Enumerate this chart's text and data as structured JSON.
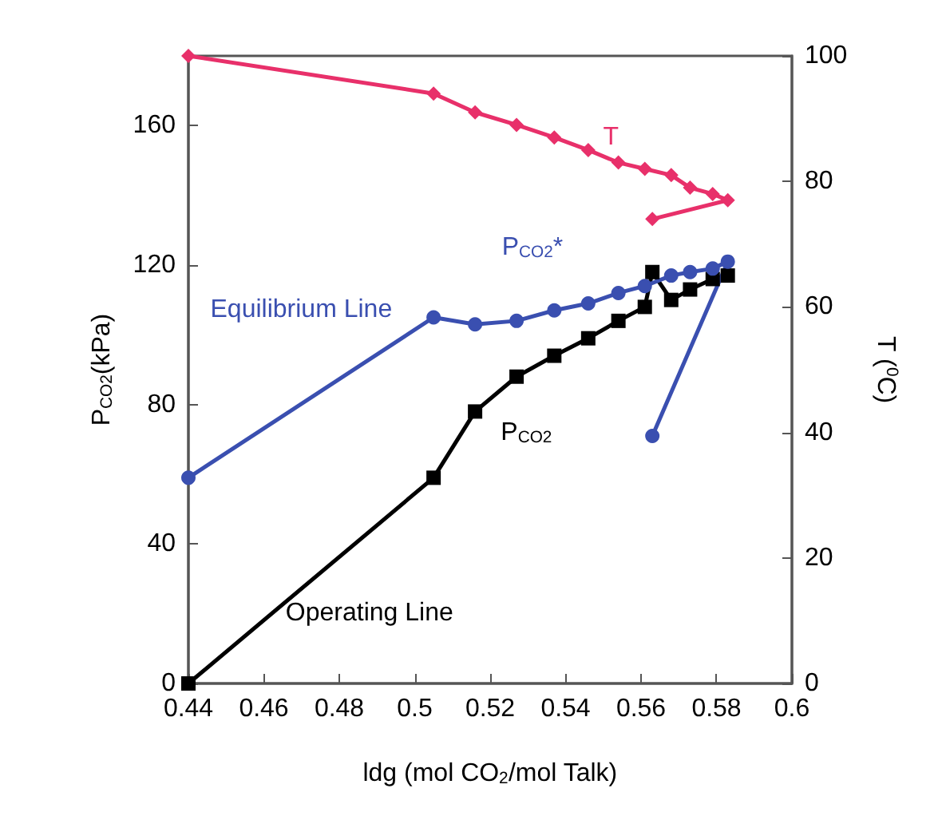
{
  "chart_data": {
    "type": "line",
    "xlabel": "ldg (mol CO$_{2}$/mol Talk)",
    "ylabel": "P$_{CO2}$(kPa)",
    "y2label": "T ($^{0}$C)",
    "xlim": [
      0.44,
      0.6
    ],
    "xticks": [
      0.44,
      0.46,
      0.48,
      0.5,
      0.52,
      0.54,
      0.56,
      0.58,
      0.6
    ],
    "ylim": [
      0,
      180
    ],
    "yticks": [
      0,
      40,
      80,
      120,
      160
    ],
    "y2lim": [
      0,
      100
    ],
    "y2ticks": [
      0,
      20,
      40,
      60,
      80,
      100
    ],
    "grid": false,
    "series": [
      {
        "name": "P$_{CO2}$",
        "color": "#000000",
        "marker": "square",
        "x": [
          0.44,
          0.505,
          0.516,
          0.527,
          0.537,
          0.546,
          0.554,
          0.561,
          0.563,
          0.568,
          0.573,
          0.579,
          0.583
        ],
        "values": [
          0,
          59,
          78,
          88,
          94,
          99,
          104,
          108,
          118,
          110,
          113,
          116,
          117
        ]
      },
      {
        "name": "P$_{CO2}$*",
        "color": "#3a4fb0",
        "marker": "circle",
        "x": [
          0.44,
          0.505,
          0.516,
          0.527,
          0.537,
          0.546,
          0.554,
          0.561,
          0.568,
          0.573,
          0.579,
          0.583,
          0.563
        ],
        "values": [
          59,
          105,
          103,
          104,
          107,
          109,
          112,
          114,
          117,
          118,
          119,
          121,
          71
        ]
      },
      {
        "name": "T",
        "color": "#e8306a",
        "marker": "diamond",
        "axis": "y2",
        "x": [
          0.44,
          0.505,
          0.516,
          0.527,
          0.537,
          0.546,
          0.554,
          0.561,
          0.568,
          0.573,
          0.579,
          0.583,
          0.563
        ],
        "values": [
          100,
          94,
          91,
          89,
          87,
          85,
          83,
          82,
          81,
          79,
          78,
          77,
          74
        ]
      }
    ],
    "annotations": [
      "Equilibrium Line",
      "Operating Line"
    ]
  }
}
